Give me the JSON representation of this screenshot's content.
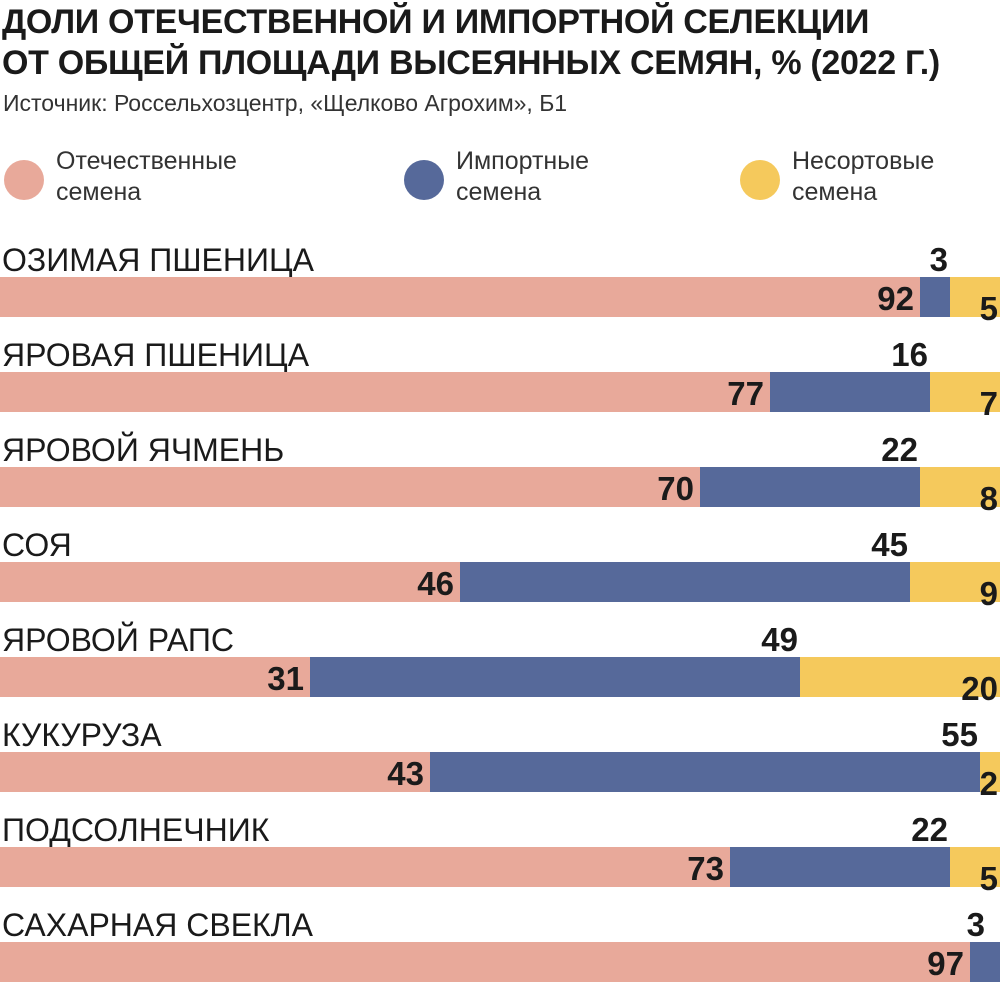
{
  "title_lines": [
    "ДОЛИ ОТЕЧЕСТВЕННОЙ И ИМПОРТНОЙ СЕЛЕКЦИИ",
    "ОТ ОБЩЕЙ ПЛОЩАДИ ВЫСЕЯННЫХ СЕМЯН, % (2022 Г.)"
  ],
  "source": "Источник: Россельхозцентр, «Щелково Агрохим», Б1",
  "legend": [
    {
      "line1": "Отечественные",
      "line2": "семена",
      "color": "#e8a99a"
    },
    {
      "line1": "Импортные",
      "line2": "семена",
      "color": "#56699a"
    },
    {
      "line1": "Несортовые",
      "line2": "семена",
      "color": "#f5c95c"
    }
  ],
  "chart_data": {
    "type": "bar",
    "orientation": "horizontal",
    "stacked": true,
    "title": "ДОЛИ ОТЕЧЕСТВЕННОЙ И ИМПОРТНОЙ СЕЛЕКЦИИ ОТ ОБЩЕЙ ПЛОЩАДИ ВЫСЕЯННЫХ СЕМЯН, % (2022 Г.)",
    "categories": [
      "ОЗИМАЯ ПШЕНИЦА",
      "ЯРОВАЯ ПШЕНИЦА",
      "ЯРОВОЙ ЯЧМЕНЬ",
      "СОЯ",
      "ЯРОВОЙ РАПС",
      "КУКУРУЗА",
      "ПОДСОЛНЕЧНИК",
      "САХАРНАЯ СВЕКЛА"
    ],
    "series": [
      {
        "name": "Отечественные семена",
        "color": "#e8a99a",
        "values": [
          92,
          77,
          70,
          46,
          31,
          43,
          73,
          97
        ]
      },
      {
        "name": "Импортные семена",
        "color": "#56699a",
        "values": [
          3,
          16,
          22,
          45,
          49,
          55,
          22,
          3
        ]
      },
      {
        "name": "Несортовые семена",
        "color": "#f5c95c",
        "values": [
          5,
          7,
          8,
          9,
          20,
          2,
          5,
          0
        ]
      }
    ],
    "xlim": [
      0,
      100
    ],
    "grid": false,
    "legend_position": "top"
  }
}
